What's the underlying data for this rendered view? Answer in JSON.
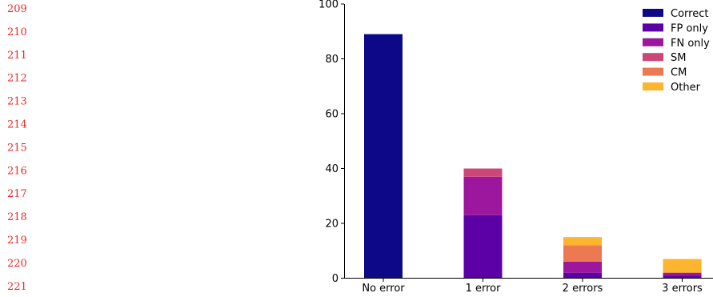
{
  "line_numbers": [
    "209",
    "210",
    "211",
    "212",
    "213",
    "214",
    "215",
    "216",
    "217",
    "218",
    "219",
    "220",
    "221"
  ],
  "colors": {
    "line_numbers": "#e8292b",
    "Correct": "#0d0887",
    "FP only": "#5c01a6",
    "FN only": "#9c179e",
    "SM": "#cc4778",
    "CM": "#ed7953",
    "Other": "#fdb42f"
  },
  "chart_data": {
    "type": "bar",
    "stacked": true,
    "title": "",
    "xlabel": "",
    "ylabel": "",
    "categories": [
      "No error",
      "1 error",
      "2 errors",
      "3 errors"
    ],
    "ylim": [
      0,
      100
    ],
    "yticks": [
      0,
      20,
      40,
      60,
      80,
      100
    ],
    "grid": false,
    "legend_position": "top-right",
    "series": [
      {
        "name": "Correct",
        "values": [
          89,
          0,
          0,
          0
        ]
      },
      {
        "name": "FP only",
        "values": [
          0,
          23,
          2,
          1
        ]
      },
      {
        "name": "FN only",
        "values": [
          0,
          14,
          4,
          1
        ]
      },
      {
        "name": "SM",
        "values": [
          0,
          3,
          0,
          0
        ]
      },
      {
        "name": "CM",
        "values": [
          0,
          0,
          6,
          0
        ]
      },
      {
        "name": "Other",
        "values": [
          0,
          0,
          3,
          5
        ]
      }
    ]
  }
}
